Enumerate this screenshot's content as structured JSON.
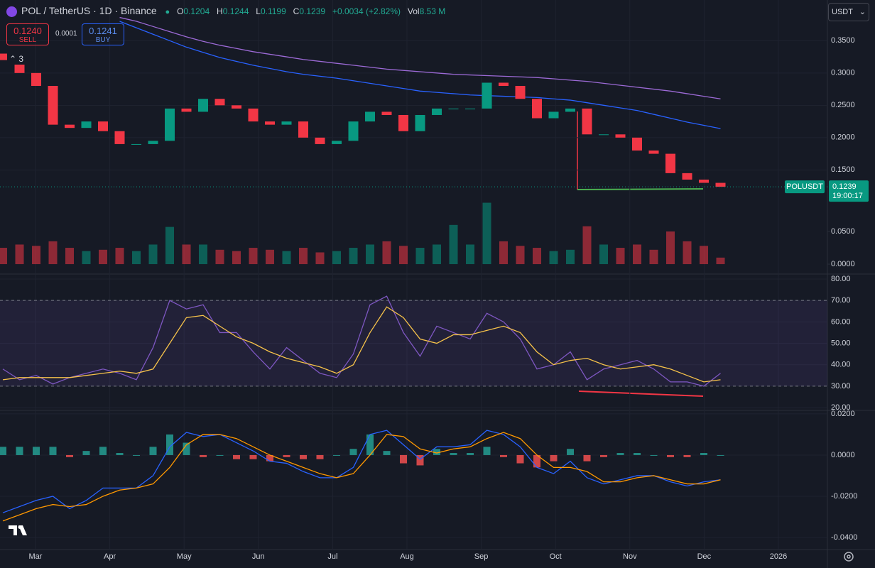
{
  "header": {
    "title": "POL / TetherUS · 1D · Binance",
    "o_key": "O",
    "o": "0.1204",
    "h_key": "H",
    "h": "0.1244",
    "l_key": "L",
    "l": "0.1199",
    "c_key": "C",
    "c": "0.1239",
    "change": "+0.0034 (+2.82%)",
    "vol_key": "Vol",
    "vol": "8.53 M"
  },
  "trade": {
    "sell_price": "0.1240",
    "sell": "SELL",
    "spread": "0.0001",
    "buy_price": "0.1241",
    "buy": "BUY"
  },
  "indicator_count": 3,
  "currency": "USDT",
  "last_price": {
    "symbol": "POLUSDT",
    "price": "0.1239",
    "countdown": "19:00:17",
    "value": 0.1239
  },
  "x_axis_labels": [
    "Mar",
    "Apr",
    "May",
    "Jun",
    "Jul",
    "Aug",
    "Sep",
    "Oct",
    "Nov",
    "Dec",
    "2026"
  ],
  "chart_data": [
    {
      "type": "candlestick",
      "open": [
        0.33,
        0.32,
        0.3,
        0.28,
        0.22,
        0.215,
        0.225,
        0.21,
        0.19,
        0.19,
        0.195,
        0.245,
        0.24,
        0.26,
        0.25,
        0.245,
        0.225,
        0.22,
        0.225,
        0.2,
        0.19,
        0.195,
        0.225,
        0.24,
        0.235,
        0.21,
        0.235,
        0.245,
        0.245,
        0.245,
        0.285,
        0.28,
        0.26,
        0.23,
        0.24,
        0.245,
        0.205,
        0.205,
        0.2,
        0.18,
        0.175,
        0.145,
        0.135,
        0.13
      ],
      "close": [
        0.32,
        0.3,
        0.28,
        0.22,
        0.215,
        0.225,
        0.21,
        0.19,
        0.19,
        0.195,
        0.245,
        0.24,
        0.26,
        0.25,
        0.245,
        0.225,
        0.22,
        0.225,
        0.2,
        0.19,
        0.195,
        0.225,
        0.24,
        0.235,
        0.21,
        0.235,
        0.245,
        0.245,
        0.245,
        0.285,
        0.28,
        0.26,
        0.23,
        0.24,
        0.245,
        0.205,
        0.205,
        0.2,
        0.18,
        0.175,
        0.145,
        0.135,
        0.13,
        0.1239
      ],
      "up_color": "#089981",
      "down_color": "#f23645",
      "series": [
        {
          "color": "#2962ff",
          "values": [
            null,
            null,
            null,
            null,
            null,
            null,
            null,
            0.38,
            0.37,
            0.36,
            0.35,
            0.34,
            0.332,
            0.324,
            0.318,
            0.312,
            0.307,
            0.302,
            0.298,
            0.295,
            0.292,
            0.288,
            0.284,
            0.28,
            0.276,
            0.272,
            0.27,
            0.268,
            0.266,
            0.265,
            0.264,
            0.263,
            0.262,
            0.26,
            0.258,
            0.254,
            0.25,
            0.246,
            0.242,
            0.236,
            0.23,
            0.224,
            0.219,
            0.214
          ]
        },
        {
          "color": "#9c6ad6",
          "values": [
            null,
            null,
            null,
            null,
            null,
            null,
            null,
            0.386,
            0.38,
            0.372,
            0.364,
            0.356,
            0.349,
            0.343,
            0.338,
            0.333,
            0.329,
            0.325,
            0.321,
            0.318,
            0.315,
            0.312,
            0.309,
            0.306,
            0.304,
            0.302,
            0.3,
            0.298,
            0.297,
            0.296,
            0.295,
            0.294,
            0.293,
            0.291,
            0.289,
            0.287,
            0.284,
            0.281,
            0.278,
            0.275,
            0.272,
            0.268,
            0.264,
            0.26
          ]
        }
      ],
      "ylim": [
        0.102,
        0.413
      ],
      "yticks": [
        {
          "value": 0.35,
          "label": "0.3500"
        },
        {
          "value": 0.3,
          "label": "0.3000"
        },
        {
          "value": 0.25,
          "label": "0.2500"
        },
        {
          "value": 0.2,
          "label": "0.2000"
        },
        {
          "value": 0.15,
          "label": "0.1500"
        }
      ]
    },
    {
      "type": "bar",
      "values": [
        0.025,
        0.03,
        0.028,
        0.035,
        0.025,
        0.02,
        0.022,
        0.025,
        0.02,
        0.03,
        0.057,
        0.03,
        0.03,
        0.022,
        0.02,
        0.025,
        0.022,
        0.02,
        0.025,
        0.018,
        0.02,
        0.025,
        0.03,
        0.035,
        0.028,
        0.025,
        0.03,
        0.06,
        0.03,
        0.094,
        0.035,
        0.028,
        0.025,
        0.02,
        0.022,
        0.058,
        0.03,
        0.025,
        0.03,
        0.022,
        0.05,
        0.035,
        0.028,
        0.01
      ],
      "ylim": [
        -0.013,
        0.0946
      ],
      "yticks": [
        {
          "value": 0.05,
          "label": "0.0500"
        },
        {
          "value": 0,
          "label": "0.0000"
        }
      ]
    },
    {
      "type": "line",
      "series": [
        {
          "color": "#7e57c2",
          "values": [
            38,
            33,
            35,
            31,
            34,
            36,
            38,
            36,
            33,
            48,
            70,
            66,
            68,
            55,
            55,
            46,
            38,
            48,
            42,
            36,
            34,
            45,
            68,
            72,
            55,
            44,
            58,
            55,
            52,
            64,
            60,
            52,
            38,
            40,
            46,
            33,
            38,
            40,
            42,
            38,
            32,
            32,
            30,
            36
          ]
        },
        {
          "color": "#f7c34a",
          "values": [
            33,
            34,
            34,
            34,
            34,
            35,
            36,
            37,
            36,
            38,
            50,
            62,
            63,
            58,
            53,
            50,
            46,
            43,
            41,
            39,
            36,
            40,
            55,
            67,
            62,
            52,
            50,
            54,
            54,
            56,
            58,
            55,
            46,
            40,
            42,
            43,
            40,
            38,
            39,
            40,
            38,
            35,
            32,
            33
          ]
        }
      ],
      "band": [
        30,
        70
      ],
      "ylim": [
        18.7,
        84.3
      ],
      "yticks": [
        {
          "value": 80,
          "label": "80.00"
        },
        {
          "value": 70,
          "label": "70.00"
        },
        {
          "value": 60,
          "label": "60.00"
        },
        {
          "value": 50,
          "label": "50.00"
        },
        {
          "value": 40,
          "label": "40.00"
        },
        {
          "value": 30,
          "label": "30.00"
        },
        {
          "value": 20,
          "label": "20.00"
        }
      ]
    },
    {
      "type": "line",
      "histogram": [
        0.004,
        0.004,
        0.004,
        0.004,
        -0.001,
        0.002,
        0.004,
        0.001,
        0,
        0.004,
        0.01,
        0.006,
        -0.001,
        0,
        -0.002,
        -0.002,
        -0.003,
        -0.001,
        -0.002,
        -0.002,
        0,
        0.003,
        0.01,
        0.002,
        -0.004,
        -0.005,
        0.003,
        0.001,
        0.001,
        0.004,
        -0.001,
        -0.004,
        -0.006,
        -0.003,
        0.003,
        -0.003,
        -0.001,
        0.001,
        0.001,
        0,
        -0.001,
        -0.001,
        0.001,
        0
      ],
      "histogram_colors": [
        "#26a69a",
        "#ff5252"
      ],
      "series": [
        {
          "color": "#2962ff",
          "values": [
            -0.028,
            -0.025,
            -0.022,
            -0.02,
            -0.026,
            -0.022,
            -0.016,
            -0.016,
            -0.016,
            -0.01,
            0.004,
            0.011,
            0.009,
            0.01,
            0.006,
            0.002,
            -0.003,
            -0.004,
            -0.008,
            -0.011,
            -0.011,
            -0.006,
            0.01,
            0.012,
            0.005,
            -0.002,
            0.004,
            0.004,
            0.005,
            0.012,
            0.01,
            0.004,
            -0.006,
            -0.009,
            -0.003,
            -0.011,
            -0.014,
            -0.012,
            -0.01,
            -0.01,
            -0.013,
            -0.015,
            -0.013,
            -0.012
          ]
        },
        {
          "color": "#ff9800",
          "values": [
            -0.032,
            -0.029,
            -0.026,
            -0.024,
            -0.025,
            -0.024,
            -0.02,
            -0.017,
            -0.016,
            -0.014,
            -0.006,
            0.005,
            0.01,
            0.01,
            0.008,
            0.004,
            0.0,
            -0.003,
            -0.006,
            -0.009,
            -0.011,
            -0.009,
            0.0,
            0.01,
            0.009,
            0.003,
            0.001,
            0.003,
            0.004,
            0.008,
            0.011,
            0.008,
            0.0,
            -0.006,
            -0.006,
            -0.008,
            -0.013,
            -0.013,
            -0.011,
            -0.01,
            -0.012,
            -0.014,
            -0.014,
            -0.012
          ]
        }
      ],
      "ylim": [
        -0.0462,
        0.021
      ],
      "yticks": [
        {
          "value": 0.02,
          "label": "0.0200"
        },
        {
          "value": 0,
          "label": "0.0000"
        },
        {
          "value": -0.02,
          "label": "-0.0200"
        },
        {
          "value": -0.04,
          "label": "-0.0400"
        }
      ]
    }
  ]
}
